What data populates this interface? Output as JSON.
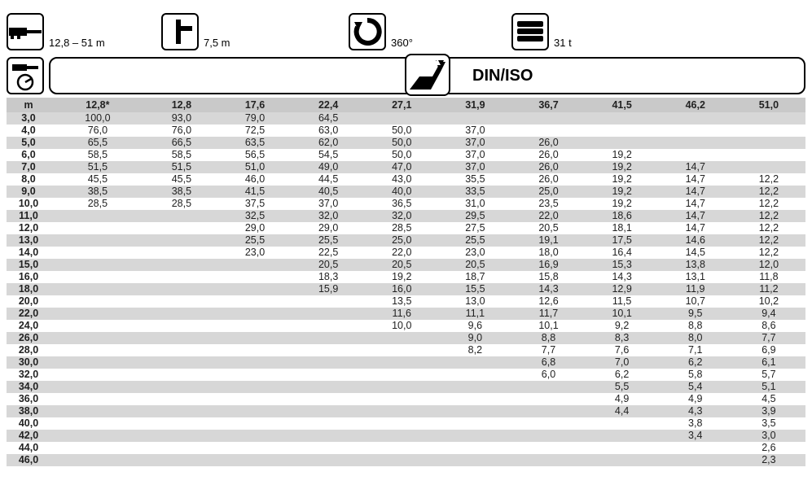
{
  "header": {
    "boom": {
      "label": "12,8 – 51 m"
    },
    "outrigger": {
      "label": "7,5 m"
    },
    "slew": {
      "label": "360°"
    },
    "counterweight": {
      "label": "31 t"
    }
  },
  "subheader": {
    "standard": "DIN/ISO"
  },
  "table": {
    "corner": "m",
    "columns": [
      "12,8*",
      "12,8",
      "17,6",
      "22,4",
      "27,1",
      "31,9",
      "36,7",
      "41,5",
      "46,2",
      "51,0"
    ],
    "rows": [
      {
        "m": "3,0",
        "v": [
          "100,0",
          "93,0",
          "79,0",
          "64,5",
          "",
          "",
          "",
          "",
          "",
          ""
        ]
      },
      {
        "m": "4,0",
        "v": [
          "76,0",
          "76,0",
          "72,5",
          "63,0",
          "50,0",
          "37,0",
          "",
          "",
          "",
          ""
        ]
      },
      {
        "m": "5,0",
        "v": [
          "65,5",
          "66,5",
          "63,5",
          "62,0",
          "50,0",
          "37,0",
          "26,0",
          "",
          "",
          ""
        ]
      },
      {
        "m": "6,0",
        "v": [
          "58,5",
          "58,5",
          "56,5",
          "54,5",
          "50,0",
          "37,0",
          "26,0",
          "19,2",
          "",
          ""
        ]
      },
      {
        "m": "7,0",
        "v": [
          "51,5",
          "51,5",
          "51,0",
          "49,0",
          "47,0",
          "37,0",
          "26,0",
          "19,2",
          "14,7",
          ""
        ]
      },
      {
        "m": "8,0",
        "v": [
          "45,5",
          "45,5",
          "46,0",
          "44,5",
          "43,0",
          "35,5",
          "26,0",
          "19,2",
          "14,7",
          "12,2"
        ]
      },
      {
        "m": "9,0",
        "v": [
          "38,5",
          "38,5",
          "41,5",
          "40,5",
          "40,0",
          "33,5",
          "25,0",
          "19,2",
          "14,7",
          "12,2"
        ]
      },
      {
        "m": "10,0",
        "v": [
          "28,5",
          "28,5",
          "37,5",
          "37,0",
          "36,5",
          "31,0",
          "23,5",
          "19,2",
          "14,7",
          "12,2"
        ]
      },
      {
        "m": "11,0",
        "v": [
          "",
          "",
          "32,5",
          "32,0",
          "32,0",
          "29,5",
          "22,0",
          "18,6",
          "14,7",
          "12,2"
        ]
      },
      {
        "m": "12,0",
        "v": [
          "",
          "",
          "29,0",
          "29,0",
          "28,5",
          "27,5",
          "20,5",
          "18,1",
          "14,7",
          "12,2"
        ]
      },
      {
        "m": "13,0",
        "v": [
          "",
          "",
          "25,5",
          "25,5",
          "25,0",
          "25,5",
          "19,1",
          "17,5",
          "14,6",
          "12,2"
        ]
      },
      {
        "m": "14,0",
        "v": [
          "",
          "",
          "23,0",
          "22,5",
          "22,0",
          "23,0",
          "18,0",
          "16,4",
          "14,5",
          "12,2"
        ]
      },
      {
        "m": "15,0",
        "v": [
          "",
          "",
          "",
          "20,5",
          "20,5",
          "20,5",
          "16,9",
          "15,3",
          "13,8",
          "12,0"
        ]
      },
      {
        "m": "16,0",
        "v": [
          "",
          "",
          "",
          "18,3",
          "19,2",
          "18,7",
          "15,8",
          "14,3",
          "13,1",
          "11,8"
        ]
      },
      {
        "m": "18,0",
        "v": [
          "",
          "",
          "",
          "15,9",
          "16,0",
          "15,5",
          "14,3",
          "12,9",
          "11,9",
          "11,2"
        ]
      },
      {
        "m": "20,0",
        "v": [
          "",
          "",
          "",
          "",
          "13,5",
          "13,0",
          "12,6",
          "11,5",
          "10,7",
          "10,2"
        ]
      },
      {
        "m": "22,0",
        "v": [
          "",
          "",
          "",
          "",
          "11,6",
          "11,1",
          "11,7",
          "10,1",
          "9,5",
          "9,4"
        ]
      },
      {
        "m": "24,0",
        "v": [
          "",
          "",
          "",
          "",
          "10,0",
          "9,6",
          "10,1",
          "9,2",
          "8,8",
          "8,6"
        ]
      },
      {
        "m": "26,0",
        "v": [
          "",
          "",
          "",
          "",
          "",
          "9,0",
          "8,8",
          "8,3",
          "8,0",
          "7,7"
        ]
      },
      {
        "m": "28,0",
        "v": [
          "",
          "",
          "",
          "",
          "",
          "8,2",
          "7,7",
          "7,6",
          "7,1",
          "6,9"
        ]
      },
      {
        "m": "30,0",
        "v": [
          "",
          "",
          "",
          "",
          "",
          "",
          "6,8",
          "7,0",
          "6,2",
          "6,1"
        ]
      },
      {
        "m": "32,0",
        "v": [
          "",
          "",
          "",
          "",
          "",
          "",
          "6,0",
          "6,2",
          "5,8",
          "5,7"
        ]
      },
      {
        "m": "34,0",
        "v": [
          "",
          "",
          "",
          "",
          "",
          "",
          "",
          "5,5",
          "5,4",
          "5,1"
        ]
      },
      {
        "m": "36,0",
        "v": [
          "",
          "",
          "",
          "",
          "",
          "",
          "",
          "4,9",
          "4,9",
          "4,5"
        ]
      },
      {
        "m": "38,0",
        "v": [
          "",
          "",
          "",
          "",
          "",
          "",
          "",
          "4,4",
          "4,3",
          "3,9"
        ]
      },
      {
        "m": "40,0",
        "v": [
          "",
          "",
          "",
          "",
          "",
          "",
          "",
          "",
          "3,8",
          "3,5"
        ]
      },
      {
        "m": "42,0",
        "v": [
          "",
          "",
          "",
          "",
          "",
          "",
          "",
          "",
          "3,4",
          "3,0"
        ]
      },
      {
        "m": "44,0",
        "v": [
          "",
          "",
          "",
          "",
          "",
          "",
          "",
          "",
          "",
          "2,6"
        ]
      },
      {
        "m": "46,0",
        "v": [
          "",
          "",
          "",
          "",
          "",
          "",
          "",
          "",
          "",
          "2,3"
        ]
      }
    ]
  }
}
